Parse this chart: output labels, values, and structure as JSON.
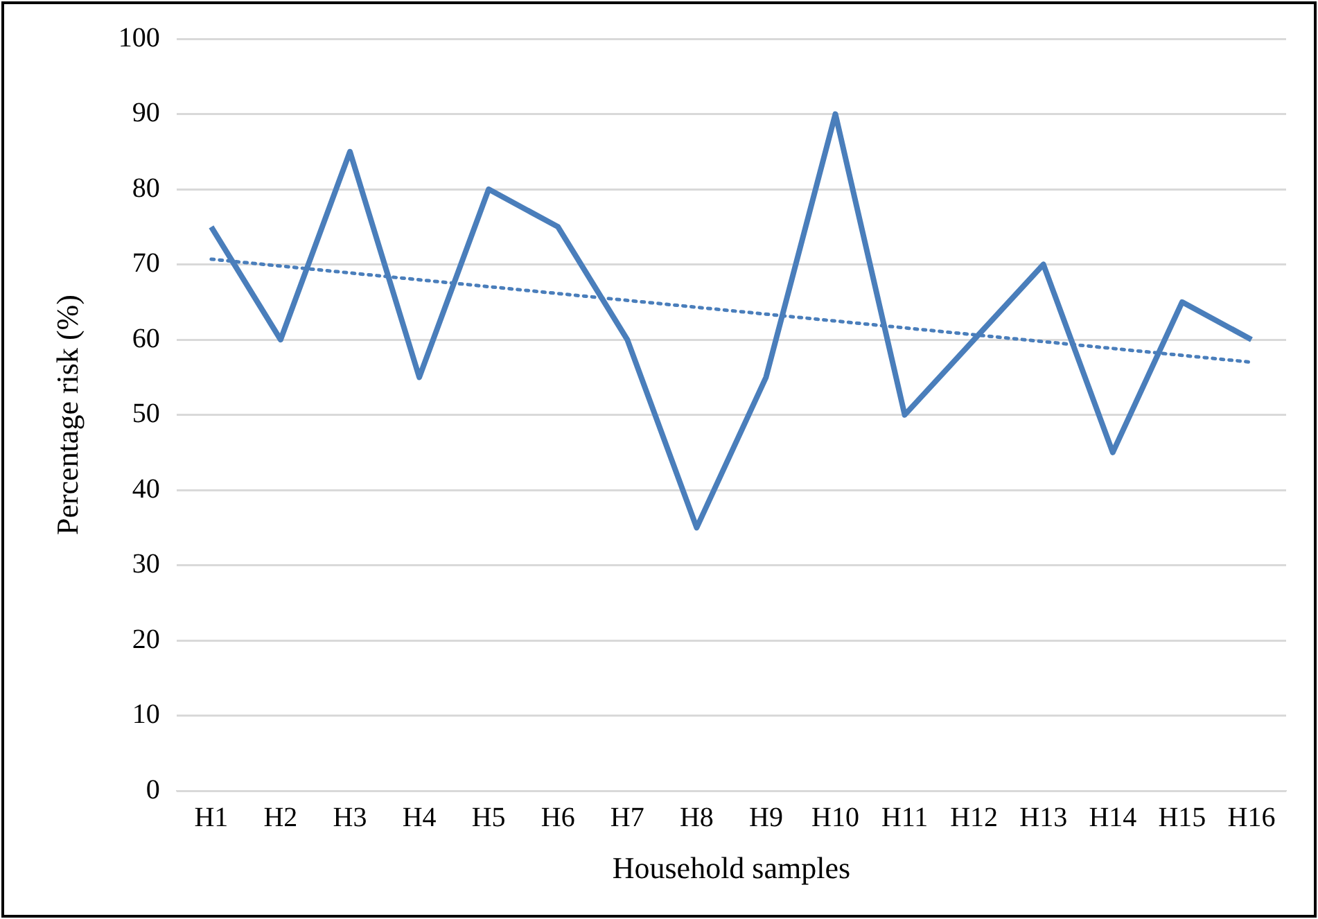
{
  "chart_data": {
    "type": "line",
    "xlabel": "Household samples",
    "ylabel": "Percentage risk (%)",
    "categories": [
      "H1",
      "H2",
      "H3",
      "H4",
      "H5",
      "H6",
      "H7",
      "H8",
      "H9",
      "H10",
      "H11",
      "H12",
      "H13",
      "H14",
      "H15",
      "H16"
    ],
    "series": [
      {
        "color": "#4a7ebb",
        "values": [
          75,
          60,
          85,
          55,
          80,
          75,
          60,
          35,
          55,
          90,
          50,
          60,
          70,
          45,
          65,
          60
        ],
        "line_style": "solid"
      },
      {
        "type": "line",
        "color": "#4a7ebb",
        "x": [
          "H1",
          "H16"
        ],
        "values": [
          70.7,
          57
        ],
        "line_style": "dotted"
      }
    ],
    "ylim": [
      0,
      100
    ],
    "yticks": [
      0,
      10,
      20,
      30,
      40,
      50,
      60,
      70,
      80,
      90,
      100
    ],
    "grid": "y",
    "legend": false,
    "marker": "none"
  }
}
